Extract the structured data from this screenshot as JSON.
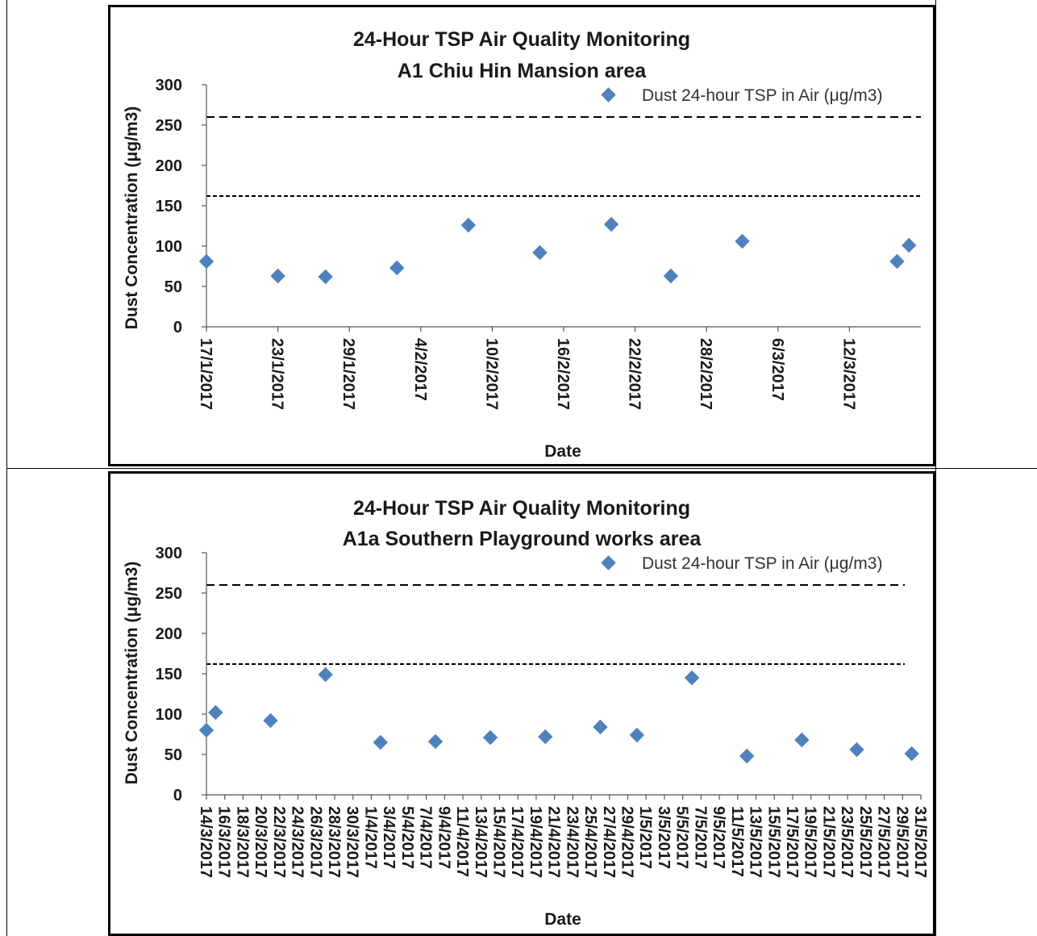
{
  "chart_data": [
    {
      "type": "scatter",
      "title_lines": [
        "24-Hour TSP Air Quality Monitoring",
        "A1 Chiu Hin Mansion area"
      ],
      "xlabel": "Date",
      "ylabel": "Dust Concentration (μg/m3)",
      "ylim": [
        0,
        300
      ],
      "yticks": [
        0,
        50,
        100,
        150,
        200,
        250,
        300
      ],
      "xlim": [
        "17/1/2017",
        "18/3/2017"
      ],
      "xtick_labels": [
        "17/1/2017",
        "23/1/2017",
        "29/1/2017",
        "4/2/2017",
        "10/2/2017",
        "16/2/2017",
        "22/2/2017",
        "28/2/2017",
        "6/3/2017",
        "12/3/2017"
      ],
      "reference_lines": [
        260,
        162
      ],
      "legend": "Dust 24-hour TSP in Air (μg/m3)",
      "legend_position": "top-right",
      "marker_color": "#4f81bd",
      "series": [
        {
          "name": "Dust 24-hour TSP in Air (μg/m3)",
          "x": [
            "17/1/2017",
            "23/1/2017",
            "27/1/2017",
            "2/2/2017",
            "8/2/2017",
            "14/2/2017",
            "20/2/2017",
            "25/2/2017",
            "3/3/2017",
            "16/3/2017",
            "17/3/2017"
          ],
          "y": [
            81,
            63,
            62,
            73,
            126,
            92,
            127,
            63,
            106,
            81,
            101
          ]
        }
      ]
    },
    {
      "type": "scatter",
      "title_lines": [
        "24-Hour TSP Air Quality Monitoring",
        "A1a Southern Playground works area"
      ],
      "xlabel": "Date",
      "ylabel": "Dust Concentration (μg/m3)",
      "ylim": [
        0,
        300
      ],
      "yticks": [
        0,
        50,
        100,
        150,
        200,
        250,
        300
      ],
      "xlim": [
        "14/3/2017",
        "31/5/2017"
      ],
      "xtick_labels": [
        "14/3/2017",
        "16/3/2017",
        "18/3/2017",
        "20/3/2017",
        "22/3/2017",
        "24/3/2017",
        "26/3/2017",
        "28/3/2017",
        "30/3/2017",
        "1/4/2017",
        "3/4/2017",
        "5/4/2017",
        "7/4/2017",
        "9/4/2017",
        "11/4/2017",
        "13/4/2017",
        "15/4/2017",
        "17/4/2017",
        "19/4/2017",
        "21/4/2017",
        "23/4/2017",
        "25/4/2017",
        "27/4/2017",
        "29/4/2017",
        "1/5/2017",
        "3/5/2017",
        "5/5/2017",
        "7/5/2017",
        "9/5/2017",
        "11/5/2017",
        "13/5/2017",
        "15/5/2017",
        "17/5/2017",
        "19/5/2017",
        "21/5/2017",
        "23/5/2017",
        "25/5/2017",
        "27/5/2017",
        "29/5/2017",
        "31/5/2017"
      ],
      "reference_lines": [
        260,
        162
      ],
      "legend": "Dust 24-hour TSP in Air (μg/m3)",
      "legend_position": "top-right",
      "marker_color": "#4f81bd",
      "series": [
        {
          "name": "Dust 24-hour TSP in Air (μg/m3)",
          "x": [
            "14/3/2017",
            "15/3/2017",
            "21/3/2017",
            "27/3/2017",
            "2/4/2017",
            "8/4/2017",
            "14/4/2017",
            "20/4/2017",
            "26/4/2017",
            "30/4/2017",
            "6/5/2017",
            "12/5/2017",
            "18/5/2017",
            "24/5/2017",
            "30/5/2017"
          ],
          "y": [
            80,
            102,
            92,
            149,
            65,
            66,
            71,
            72,
            84,
            74,
            145,
            48,
            68,
            56,
            51
          ]
        }
      ]
    }
  ]
}
